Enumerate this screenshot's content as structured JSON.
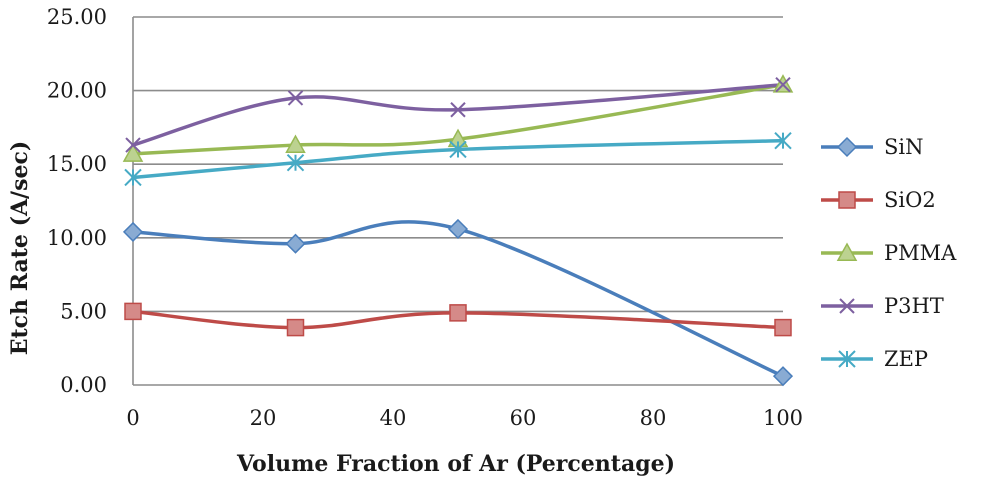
{
  "chart_data": {
    "type": "line",
    "title": "",
    "xlabel": "Volume Fraction of Ar (Percentage)",
    "ylabel": "Etch Rate (A/sec)",
    "xlim": [
      0,
      100
    ],
    "ylim": [
      0,
      25
    ],
    "x_ticks": [
      "0",
      "20",
      "40",
      "60",
      "80",
      "100"
    ],
    "y_ticks": [
      "0.00",
      "5.00",
      "10.00",
      "15.00",
      "20.00",
      "25.00"
    ],
    "grid": "horizontal",
    "legend_position": "right",
    "smooth": true,
    "x": [
      0,
      25,
      50,
      100
    ],
    "series": [
      {
        "name": "SiN",
        "values": [
          10.4,
          9.6,
          10.6,
          0.6
        ],
        "color": "#4a7ebb",
        "marker": "diamond"
      },
      {
        "name": "SiO2",
        "values": [
          5.0,
          3.9,
          4.9,
          3.9
        ],
        "color": "#be4b48",
        "marker": "square"
      },
      {
        "name": "PMMA",
        "values": [
          15.7,
          16.3,
          16.7,
          20.4
        ],
        "color": "#98b954",
        "marker": "triangle"
      },
      {
        "name": "P3HT",
        "values": [
          16.3,
          19.5,
          18.7,
          20.4
        ],
        "color": "#7d60a0",
        "marker": "x"
      },
      {
        "name": "ZEP",
        "values": [
          14.1,
          15.1,
          16.0,
          16.6
        ],
        "color": "#46aac5",
        "marker": "asterisk"
      }
    ]
  }
}
